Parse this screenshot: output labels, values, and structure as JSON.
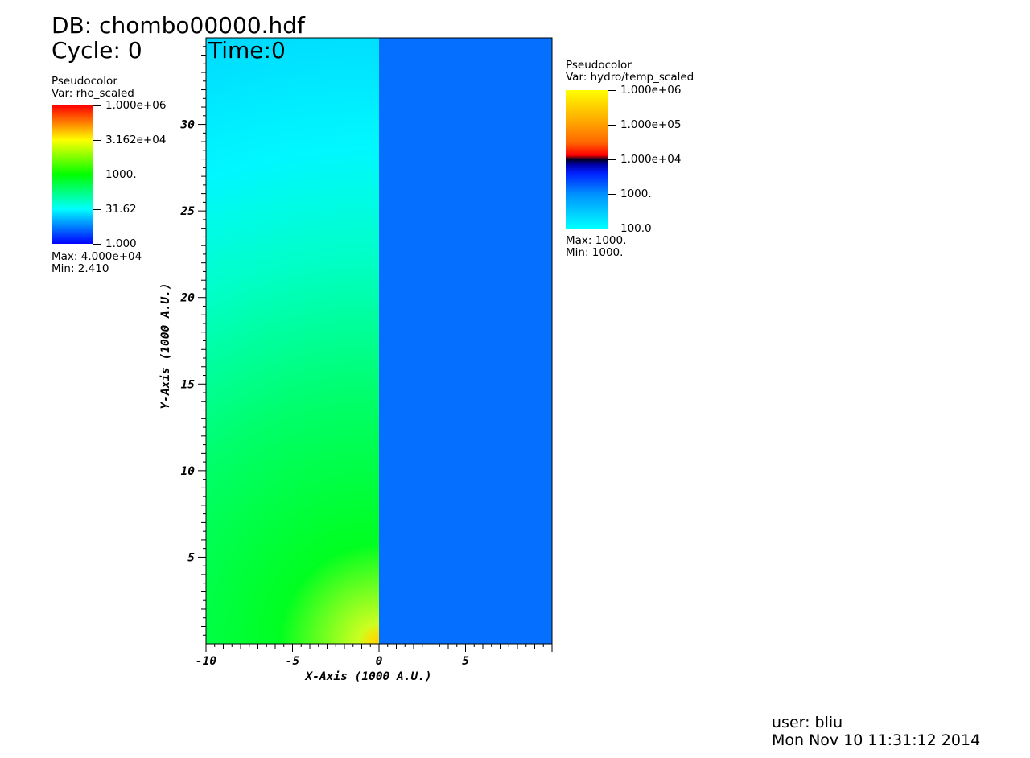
{
  "header": {
    "db_label": "DB: chombo00000.hdf",
    "cycle_label": "Cycle: 0",
    "time_label": "Time:0"
  },
  "legend_left": {
    "title": "Pseudocolor",
    "var": "Var: rho_scaled",
    "ticks": [
      "1.000e+06",
      "3.162e+04",
      "1000.",
      "31.62",
      "1.000"
    ],
    "max": "Max:  4.000e+04",
    "min": "Min:  2.410"
  },
  "legend_right": {
    "title": "Pseudocolor",
    "var": "Var: hydro/temp_scaled",
    "ticks": [
      "1.000e+06",
      "1.000e+05",
      "1.000e+04",
      "1000.",
      "100.0"
    ],
    "max": "Max:  1000.",
    "min": "Min:  1000."
  },
  "footer": {
    "user": "user: bliu",
    "date": "Mon Nov 10 11:31:12 2014"
  },
  "colors": {
    "right_half": "#0570ff",
    "rho_colormap": [
      "#0000ff",
      "#00ffff",
      "#00ff00",
      "#ffff00",
      "#ff0000"
    ],
    "temp_colormap": [
      "#00ffff",
      "#0050ff",
      "#0000cc",
      "#000030",
      "#ff0000",
      "#ff8800",
      "#ffff00"
    ]
  },
  "chart_data": {
    "type": "heatmap",
    "xlabel": "X-Axis (1000 A.U.)",
    "ylabel": "Y-Axis (1000 A.U.)",
    "xlim": [
      -10,
      10
    ],
    "ylim": [
      0,
      35
    ],
    "xticks": [
      "-10",
      "-5",
      "0",
      "5"
    ],
    "xtick_values": [
      -10,
      -5,
      0,
      5
    ],
    "yticks": [
      "5",
      "10",
      "15",
      "20",
      "25",
      "30"
    ],
    "ytick_values": [
      5,
      10,
      15,
      20,
      25,
      30
    ],
    "left_half_variable": "rho_scaled",
    "right_half_variable": "hydro/temp_scaled",
    "right_half_value": 1000
  }
}
